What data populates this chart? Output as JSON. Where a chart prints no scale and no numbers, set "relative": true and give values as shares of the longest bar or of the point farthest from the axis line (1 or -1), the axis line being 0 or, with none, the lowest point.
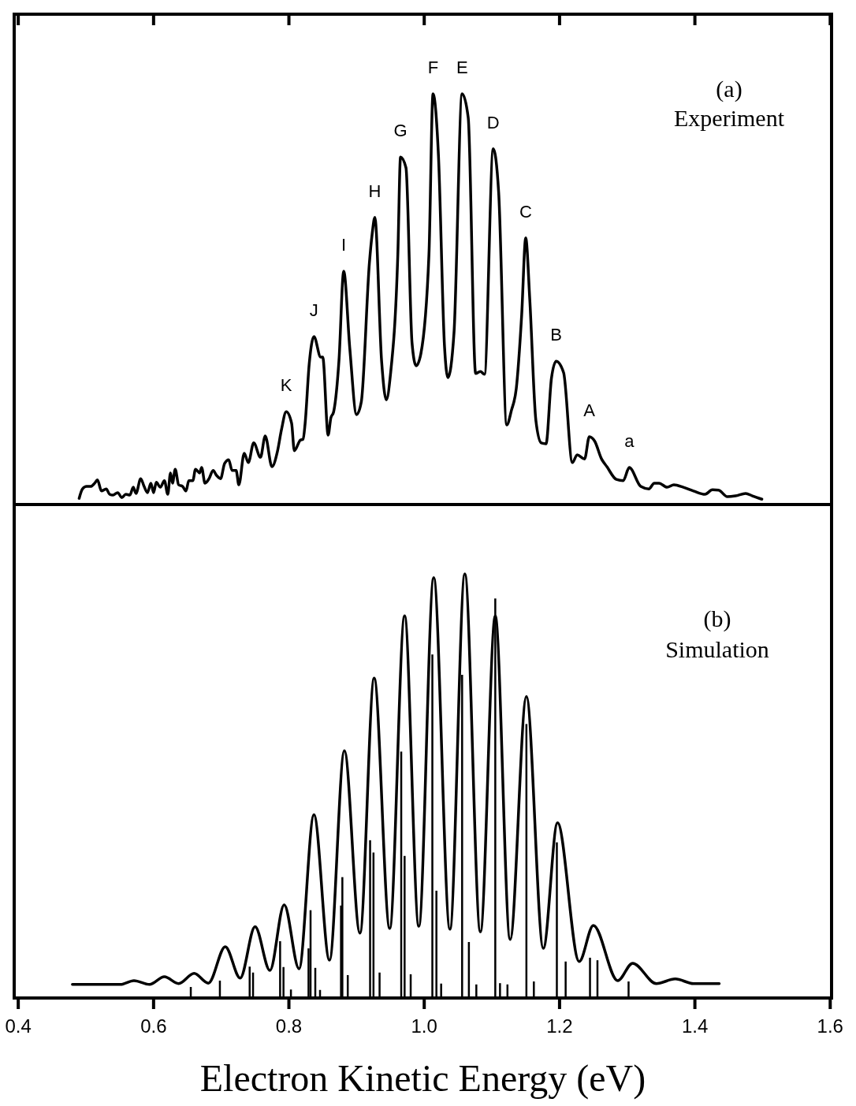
{
  "chart_data": [
    {
      "type": "line",
      "relative": true,
      "tick_labels": false,
      "xlim": [
        0.394,
        1.602
      ],
      "xticks": [
        {
          "value": 0.4,
          "label": null
        },
        {
          "value": 0.6,
          "label": null
        },
        {
          "value": 0.8,
          "label": null
        },
        {
          "value": 1.0,
          "label": null
        },
        {
          "value": 1.2,
          "label": null
        },
        {
          "value": 1.4,
          "label": null
        },
        {
          "value": 1.6,
          "label": null
        }
      ],
      "annotations": [
        "(a)",
        "Experiment",
        {
          "text": "K",
          "x": 0.796,
          "y": 0.226
        },
        {
          "text": "J",
          "x": 0.837,
          "y": 0.409
        },
        {
          "text": "I",
          "x": 0.881,
          "y": 0.568
        },
        {
          "text": "H",
          "x": 0.927,
          "y": 0.699
        },
        {
          "text": "G",
          "x": 0.965,
          "y": 0.846
        },
        {
          "text": "F",
          "x": 1.013,
          "y": 1
        },
        {
          "text": "E",
          "x": 1.056,
          "y": 1
        },
        {
          "text": "D",
          "x": 1.102,
          "y": 0.866
        },
        {
          "text": "C",
          "x": 1.15,
          "y": 0.649
        },
        {
          "text": "B",
          "x": 1.195,
          "y": 0.349
        },
        {
          "text": "A",
          "x": 1.244,
          "y": 0.165
        },
        {
          "text": "a",
          "x": 1.303,
          "y": 0.09
        }
      ],
      "series": [
        {
          "color": "#000000",
          "x": [
            0.49,
            0.495,
            0.501,
            0.507,
            0.513,
            0.517,
            0.523,
            0.53,
            0.535,
            0.54,
            0.547,
            0.553,
            0.559,
            0.565,
            0.57,
            0.574,
            0.581,
            0.586,
            0.591,
            0.596,
            0.6,
            0.604,
            0.61,
            0.616,
            0.621,
            0.625,
            0.628,
            0.632,
            0.637,
            0.643,
            0.648,
            0.652,
            0.658,
            0.662,
            0.668,
            0.671,
            0.676,
            0.682,
            0.688,
            0.693,
            0.699,
            0.705,
            0.711,
            0.716,
            0.722,
            0.726,
            0.734,
            0.74,
            0.748,
            0.758,
            0.765,
            0.775,
            0.783,
            0.789,
            0.796,
            0.804,
            0.808,
            0.817,
            0.821,
            0.824,
            0.83,
            0.837,
            0.847,
            0.85,
            0.858,
            0.862,
            0.866,
            0.874,
            0.881,
            0.89,
            0.9,
            0.907,
            0.919,
            0.923,
            0.927,
            0.937,
            0.944,
            0.95,
            0.961,
            0.965,
            0.973,
            0.982,
            0.988,
            0.995,
            1.007,
            1.013,
            1.021,
            1.03,
            1.035,
            1.044,
            1.056,
            1.065,
            1.076,
            1.083,
            1.089,
            1.102,
            1.11,
            1.122,
            1.129,
            1.136,
            1.144,
            1.15,
            1.156,
            1.165,
            1.173,
            1.18,
            1.188,
            1.195,
            1.206,
            1.219,
            1.226,
            1.237,
            1.244,
            1.252,
            1.262,
            1.27,
            1.284,
            1.294,
            1.303,
            1.32,
            1.332,
            1.34,
            1.347,
            1.359,
            1.369,
            1.383,
            1.398,
            1.415,
            1.426,
            1.435,
            1.448,
            1.46,
            1.475,
            1.485,
            1.499
          ],
          "values": [
            0.015,
            0.038,
            0.044,
            0.044,
            0.052,
            0.06,
            0.033,
            0.038,
            0.025,
            0.023,
            0.029,
            0.017,
            0.025,
            0.023,
            0.042,
            0.027,
            0.063,
            0.044,
            0.029,
            0.052,
            0.029,
            0.054,
            0.042,
            0.058,
            0.025,
            0.077,
            0.052,
            0.086,
            0.048,
            0.044,
            0.033,
            0.058,
            0.058,
            0.086,
            0.077,
            0.09,
            0.052,
            0.063,
            0.083,
            0.071,
            0.063,
            0.1,
            0.109,
            0.083,
            0.083,
            0.048,
            0.125,
            0.102,
            0.15,
            0.115,
            0.167,
            0.092,
            0.129,
            0.182,
            0.226,
            0.198,
            0.131,
            0.157,
            0.159,
            0.198,
            0.342,
            0.409,
            0.359,
            0.359,
            0.169,
            0.211,
            0.225,
            0.351,
            0.568,
            0.38,
            0.219,
            0.25,
            0.589,
            0.658,
            0.699,
            0.349,
            0.255,
            0.315,
            0.61,
            0.846,
            0.82,
            0.393,
            0.338,
            0.367,
            0.61,
            1,
            0.85,
            0.384,
            0.309,
            0.418,
            1,
            0.942,
            0.319,
            0.324,
            0.317,
            0.866,
            0.76,
            0.194,
            0.23,
            0.282,
            0.461,
            0.649,
            0.499,
            0.205,
            0.15,
            0.148,
            0.307,
            0.349,
            0.321,
            0.102,
            0.121,
            0.111,
            0.165,
            0.154,
            0.111,
            0.092,
            0.061,
            0.058,
            0.09,
            0.044,
            0.038,
            0.052,
            0.052,
            0.042,
            0.048,
            0.042,
            0.033,
            0.025,
            0.036,
            0.035,
            0.019,
            0.021,
            0.027,
            0.021,
            0.013
          ]
        }
      ]
    },
    {
      "type": "line",
      "relative": true,
      "tick_labels": "x",
      "xlim": [
        0.394,
        1.602
      ],
      "xlabel": "Electron Kinetic Energy (eV)",
      "xticks": [
        0.4,
        0.6,
        0.8,
        {
          "value": 1.0,
          "label": "1.0"
        },
        1.2,
        1.4,
        1.6
      ],
      "annotations": [
        "(b)",
        "Simulation"
      ],
      "series": [
        {
          "color": "#000000",
          "x": [
            0.48,
            0.551,
            0.571,
            0.594,
            0.616,
            0.637,
            0.66,
            0.681,
            0.706,
            0.728,
            0.75,
            0.772,
            0.793,
            0.815,
            0.837,
            0.86,
            0.882,
            0.905,
            0.926,
            0.949,
            0.971,
            0.992,
            1.014,
            1.038,
            1.06,
            1.083,
            1.105,
            1.127,
            1.151,
            1.176,
            1.197,
            1.229,
            1.25,
            1.286,
            1.308,
            1.343,
            1.371,
            1.398,
            1.436
          ],
          "values": [
            0.032,
            0.032,
            0.041,
            0.032,
            0.05,
            0.034,
            0.058,
            0.035,
            0.121,
            0.047,
            0.168,
            0.065,
            0.22,
            0.069,
            0.432,
            0.089,
            0.583,
            0.153,
            0.754,
            0.164,
            0.901,
            0.169,
            0.991,
            0.162,
            1,
            0.156,
            0.901,
            0.138,
            0.711,
            0.117,
            0.413,
            0.086,
            0.171,
            0.041,
            0.082,
            0.034,
            0.045,
            0.034,
            0.034
          ]
        },
        {
          "type": "bar",
          "color": "#000000",
          "x": [
            0.655,
            0.698,
            0.742,
            0.747,
            0.787,
            0.792,
            0.803,
            0.829,
            0.832,
            0.839,
            0.846,
            0.877,
            0.879,
            0.887,
            0.92,
            0.925,
            0.934,
            0.966,
            0.971,
            0.98,
            1.012,
            1.018,
            1.025,
            1.056,
            1.066,
            1.077,
            1.105,
            1.112,
            1.123,
            1.151,
            1.162,
            1.196,
            1.209,
            1.245,
            1.256,
            1.302
          ],
          "values": [
            0.026,
            0.041,
            0.074,
            0.06,
            0.134,
            0.073,
            0.02,
            0.117,
            0.207,
            0.071,
            0.019,
            0.218,
            0.285,
            0.054,
            0.372,
            0.343,
            0.06,
            0.581,
            0.335,
            0.056,
            0.81,
            0.253,
            0.034,
            0.762,
            0.132,
            0.032,
            0.942,
            0.035,
            0.032,
            0.646,
            0.039,
            0.367,
            0.086,
            0.095,
            0.089,
            0.039
          ]
        }
      ]
    }
  ]
}
